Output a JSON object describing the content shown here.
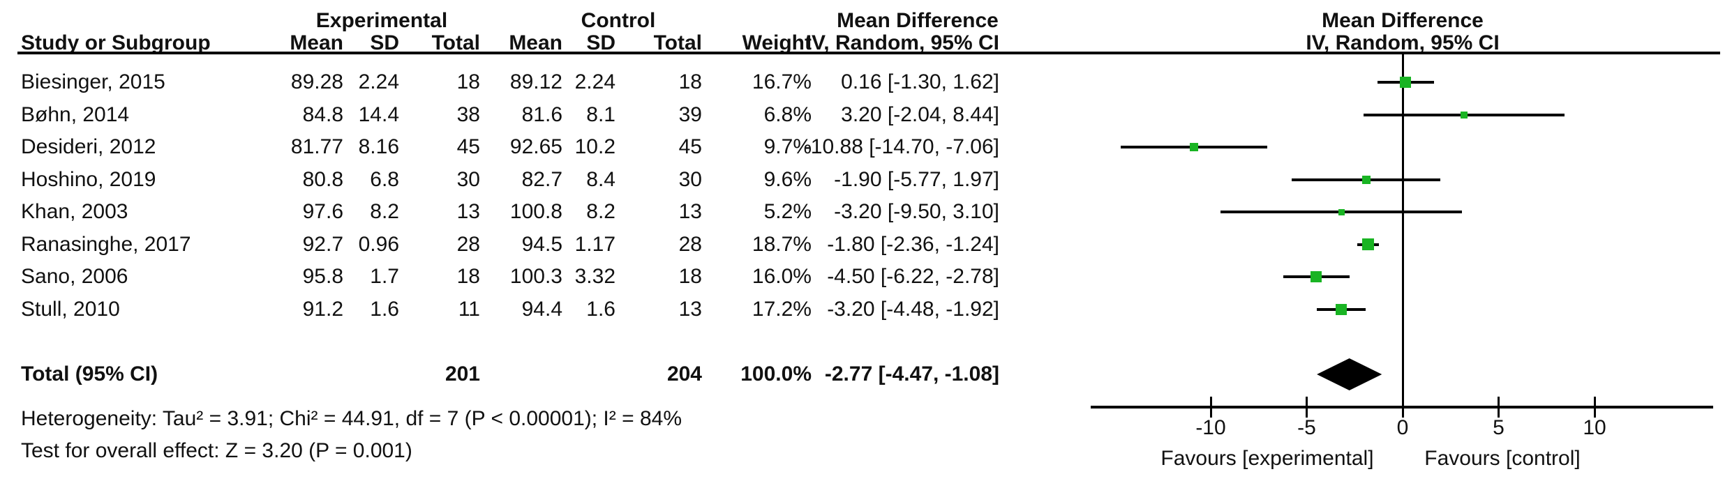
{
  "header": {
    "group_experimental": "Experimental",
    "group_control": "Control",
    "mean_difference": "Mean Difference",
    "study_or_subgroup": "Study or Subgroup",
    "mean": "Mean",
    "sd": "SD",
    "total": "Total",
    "weight": "Weight",
    "method_ci": "IV, Random, 95% CI"
  },
  "footnotes": {
    "heterogeneity": "Heterogeneity: Tau² = 3.91; Chi² = 44.91, df = 7 (P < 0.00001); I² = 84%",
    "overall_effect": "Test for overall effect: Z = 3.20 (P = 0.001)"
  },
  "colors": {
    "marker_green": "#19b423",
    "line_black": "#000000",
    "diamond_black": "#000000"
  },
  "chart_data": {
    "type": "forest",
    "effect_measure": "Mean Difference, IV, Random, 95% CI",
    "x_ticks": [
      -10,
      -5,
      0,
      5,
      10
    ],
    "xlim": [
      -16.2,
      16.2
    ],
    "favours_left": "Favours [experimental]",
    "favours_right": "Favours [control]",
    "studies": [
      {
        "name": "Biesinger, 2015",
        "exp_mean": "89.28",
        "exp_sd": "2.24",
        "exp_total": "18",
        "ctl_mean": "89.12",
        "ctl_sd": "2.24",
        "ctl_total": "18",
        "weight": "16.7%",
        "ci_text": "0.16 [-1.30, 1.62]",
        "md": 0.16,
        "lo": -1.3,
        "hi": 1.62,
        "weight_pct": 16.7
      },
      {
        "name": "Bøhn, 2014",
        "exp_mean": "84.8",
        "exp_sd": "14.4",
        "exp_total": "38",
        "ctl_mean": "81.6",
        "ctl_sd": "8.1",
        "ctl_total": "39",
        "weight": "6.8%",
        "ci_text": "3.20 [-2.04, 8.44]",
        "md": 3.2,
        "lo": -2.04,
        "hi": 8.44,
        "weight_pct": 6.8
      },
      {
        "name": "Desideri, 2012",
        "exp_mean": "81.77",
        "exp_sd": "8.16",
        "exp_total": "45",
        "ctl_mean": "92.65",
        "ctl_sd": "10.2",
        "ctl_total": "45",
        "weight": "9.7%",
        "ci_text": "-10.88 [-14.70, -7.06]",
        "md": -10.88,
        "lo": -14.7,
        "hi": -7.06,
        "weight_pct": 9.7
      },
      {
        "name": "Hoshino, 2019",
        "exp_mean": "80.8",
        "exp_sd": "6.8",
        "exp_total": "30",
        "ctl_mean": "82.7",
        "ctl_sd": "8.4",
        "ctl_total": "30",
        "weight": "9.6%",
        "ci_text": "-1.90 [-5.77, 1.97]",
        "md": -1.9,
        "lo": -5.77,
        "hi": 1.97,
        "weight_pct": 9.6
      },
      {
        "name": "Khan, 2003",
        "exp_mean": "97.6",
        "exp_sd": "8.2",
        "exp_total": "13",
        "ctl_mean": "100.8",
        "ctl_sd": "8.2",
        "ctl_total": "13",
        "weight": "5.2%",
        "ci_text": "-3.20 [-9.50, 3.10]",
        "md": -3.2,
        "lo": -9.5,
        "hi": 3.1,
        "weight_pct": 5.2
      },
      {
        "name": "Ranasinghe, 2017",
        "exp_mean": "92.7",
        "exp_sd": "0.96",
        "exp_total": "28",
        "ctl_mean": "94.5",
        "ctl_sd": "1.17",
        "ctl_total": "28",
        "weight": "18.7%",
        "ci_text": "-1.80 [-2.36, -1.24]",
        "md": -1.8,
        "lo": -2.36,
        "hi": -1.24,
        "weight_pct": 18.7
      },
      {
        "name": "Sano, 2006",
        "exp_mean": "95.8",
        "exp_sd": "1.7",
        "exp_total": "18",
        "ctl_mean": "100.3",
        "ctl_sd": "3.32",
        "ctl_total": "18",
        "weight": "16.0%",
        "ci_text": "-4.50 [-6.22, -2.78]",
        "md": -4.5,
        "lo": -6.22,
        "hi": -2.78,
        "weight_pct": 16.0
      },
      {
        "name": "Stull, 2010",
        "exp_mean": "91.2",
        "exp_sd": "1.6",
        "exp_total": "11",
        "ctl_mean": "94.4",
        "ctl_sd": "1.6",
        "ctl_total": "13",
        "weight": "17.2%",
        "ci_text": "-3.20 [-4.48, -1.92]",
        "md": -3.2,
        "lo": -4.48,
        "hi": -1.92,
        "weight_pct": 17.2
      }
    ],
    "total": {
      "label": "Total (95% CI)",
      "exp_total": "201",
      "ctl_total": "204",
      "weight": "100.0%",
      "ci_text": "-2.77 [-4.47, -1.08]",
      "md": -2.77,
      "lo": -4.47,
      "hi": -1.08
    }
  }
}
